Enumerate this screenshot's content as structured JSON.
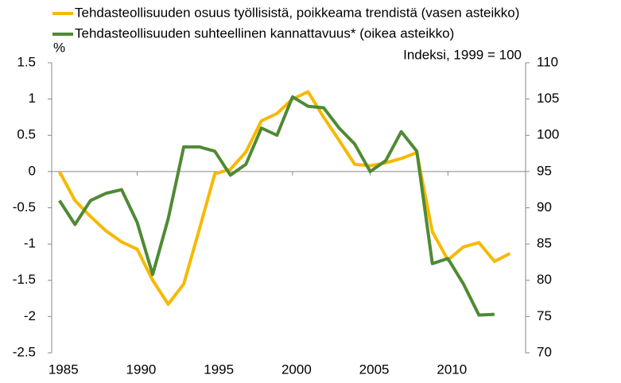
{
  "chart_data": {
    "type": "line",
    "legend": "top",
    "y_unit_label": "%",
    "y2_unit_label": "Indeksi, 1999 = 100",
    "x": [
      1985,
      1986,
      1987,
      1988,
      1989,
      1990,
      1991,
      1992,
      1993,
      1994,
      1995,
      1996,
      1997,
      1998,
      1999,
      2000,
      2001,
      2002,
      2003,
      2004,
      2005,
      2006,
      2007,
      2008,
      2009,
      2010,
      2011,
      2012,
      2013,
      2014
    ],
    "xlim": [
      1984.5,
      2015
    ],
    "xticks": [
      1985,
      1990,
      1995,
      2000,
      2005,
      2010
    ],
    "ylim": [
      -2.5,
      1.5
    ],
    "yticks": [
      -2.5,
      -2,
      -1.5,
      -1,
      -0.5,
      0,
      0.5,
      1,
      1.5
    ],
    "y2lim": [
      70,
      110
    ],
    "y2ticks": [
      70,
      75,
      80,
      85,
      90,
      95,
      100,
      105,
      110
    ],
    "series": [
      {
        "name": "Tehdasteollisuuden osuus työllisistä, poikkeama trendistä (vasen asteikko)",
        "color": "#f7b900",
        "values": [
          0,
          -0.4,
          -0.62,
          -0.82,
          -0.97,
          -1.07,
          -1.5,
          -1.83,
          -1.55,
          -0.8,
          -0.03,
          0.03,
          0.27,
          0.7,
          0.8,
          1.0,
          1.1,
          0.75,
          0.43,
          0.1,
          0.08,
          0.12,
          0.18,
          0.26,
          -0.83,
          -1.22,
          -1.04,
          -0.98,
          -1.24,
          -1.13
        ]
      },
      {
        "name": "Tehdasteollisuuden suhteellinen kannattavuus* (oikea asteikko)",
        "color": "#4f8a34",
        "axis": "y2",
        "values": [
          91,
          87.7,
          91,
          92,
          92.5,
          88,
          80.8,
          88.5,
          98.4,
          98.4,
          97.8,
          94.5,
          96,
          101,
          100,
          105.3,
          104,
          103.8,
          101,
          98.8,
          95,
          96.5,
          100.5,
          97.8,
          82.3,
          83,
          79.5,
          75.2,
          75.3,
          null
        ]
      }
    ]
  }
}
